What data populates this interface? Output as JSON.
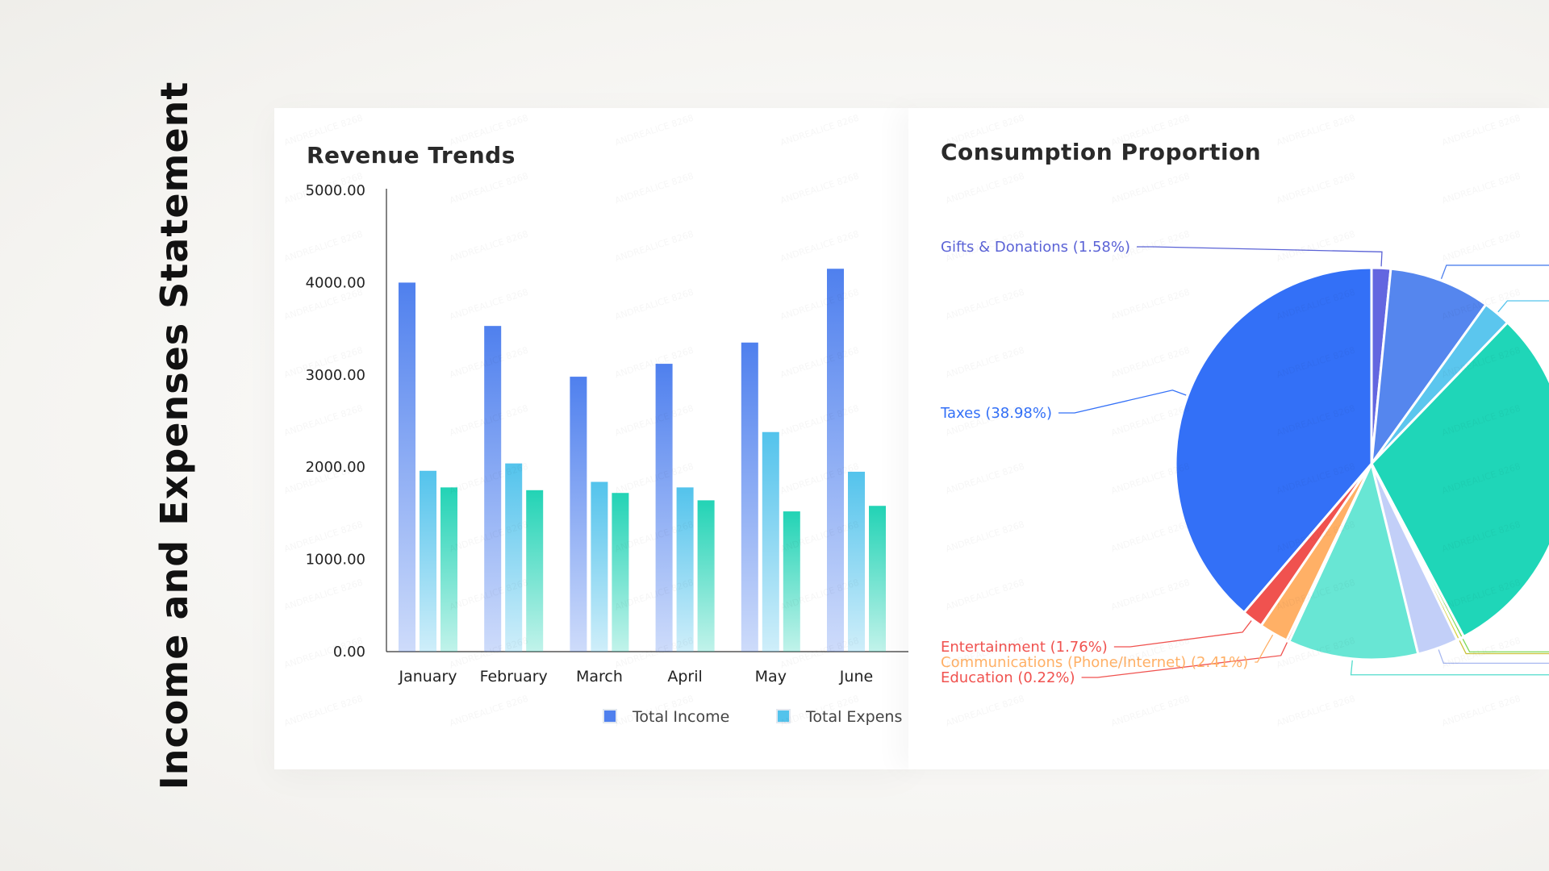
{
  "page": {
    "title": "Income and Expenses Statement",
    "watermark": "ANDREALICE 8268"
  },
  "chart_data": [
    {
      "type": "bar",
      "title": "Revenue Trends",
      "categories": [
        "January",
        "February",
        "March",
        "April",
        "May",
        "June"
      ],
      "series": [
        {
          "name": "Total Income",
          "values": [
            4000,
            3530,
            2980,
            3120,
            3350,
            4150
          ],
          "color": "#4f80ee"
        },
        {
          "name": "Total Expenses",
          "values": [
            1960,
            2040,
            1840,
            1780,
            2380,
            1950
          ],
          "color": "#53c3ec"
        },
        {
          "name": "",
          "values": [
            1780,
            1750,
            1720,
            1640,
            1520,
            1580
          ],
          "color": "#22d3b5"
        }
      ],
      "yticks": [
        "5000.00",
        "4000.00",
        "3000.00",
        "2000.00",
        "1000.00",
        "0.00"
      ],
      "ylim": [
        0,
        5000
      ],
      "legend": [
        "Total Income",
        "Total Expens"
      ],
      "legend_position": "bottom",
      "grid": false
    },
    {
      "type": "pie",
      "title": "Consumption Proportion",
      "slices": [
        {
          "label": "Gifts & Donations (1.58%)",
          "value": 1.58,
          "color": "#6366e0",
          "labelColor": "#5b63d6",
          "showLabel": true
        },
        {
          "label": "",
          "value": 8.4,
          "color": "#5586ee",
          "labelColor": "#4f80ee",
          "showLabel": false
        },
        {
          "label": "",
          "value": 2.3,
          "color": "#5bc6ee",
          "labelColor": "#53c3ec",
          "showLabel": false
        },
        {
          "label": "",
          "value": 30.2,
          "color": "#1fd6b8",
          "labelColor": "#1fd6b8",
          "showLabel": false
        },
        {
          "label": "",
          "value": 0.3,
          "color": "#7ed957",
          "labelColor": "#7ed957",
          "showLabel": false
        },
        {
          "label": "",
          "value": 0.3,
          "color": "#d9d145",
          "labelColor": "#c9c23a",
          "showLabel": false
        },
        {
          "label": "",
          "value": 3.4,
          "color": "#c2cff8",
          "labelColor": "#a8b8f0",
          "showLabel": false
        },
        {
          "label": "",
          "value": 10.8,
          "color": "#68e6d4",
          "labelColor": "#52dccb",
          "showLabel": false
        },
        {
          "label": "Education (0.22%)",
          "value": 0.22,
          "color": "#f0524f",
          "labelColor": "#f0524f",
          "showLabel": true
        },
        {
          "label": "Communications (Phone/Internet) (2.41%)",
          "value": 2.41,
          "color": "#ffb066",
          "labelColor": "#ffb066",
          "showLabel": true
        },
        {
          "label": "Entertainment (1.76%)",
          "value": 1.76,
          "color": "#f0524f",
          "labelColor": "#f0524f",
          "showLabel": true
        },
        {
          "label": "Taxes (38.98%)",
          "value": 38.98,
          "color": "#3370f7",
          "labelColor": "#3370f7",
          "showLabel": true
        }
      ]
    }
  ]
}
